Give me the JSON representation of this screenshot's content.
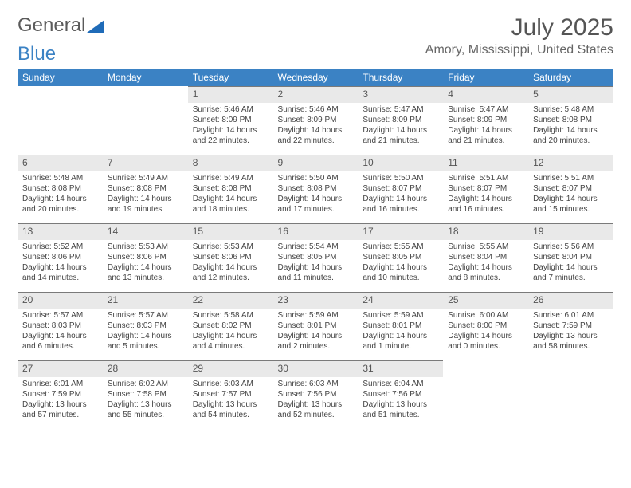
{
  "logo": {
    "general": "General",
    "blue": "Blue"
  },
  "title": "July 2025",
  "location": "Amory, Mississippi, United States",
  "colors": {
    "header_bg": "#3b82c4",
    "header_text": "#ffffff",
    "daynum_bg": "#e9e9e9",
    "daynum_border": "#7a7a7a",
    "text": "#444444"
  },
  "dayNames": [
    "Sunday",
    "Monday",
    "Tuesday",
    "Wednesday",
    "Thursday",
    "Friday",
    "Saturday"
  ],
  "weeks": [
    [
      null,
      null,
      {
        "n": "1",
        "sr": "5:46 AM",
        "ss": "8:09 PM",
        "dl": "14 hours and 22 minutes."
      },
      {
        "n": "2",
        "sr": "5:46 AM",
        "ss": "8:09 PM",
        "dl": "14 hours and 22 minutes."
      },
      {
        "n": "3",
        "sr": "5:47 AM",
        "ss": "8:09 PM",
        "dl": "14 hours and 21 minutes."
      },
      {
        "n": "4",
        "sr": "5:47 AM",
        "ss": "8:09 PM",
        "dl": "14 hours and 21 minutes."
      },
      {
        "n": "5",
        "sr": "5:48 AM",
        "ss": "8:08 PM",
        "dl": "14 hours and 20 minutes."
      }
    ],
    [
      {
        "n": "6",
        "sr": "5:48 AM",
        "ss": "8:08 PM",
        "dl": "14 hours and 20 minutes."
      },
      {
        "n": "7",
        "sr": "5:49 AM",
        "ss": "8:08 PM",
        "dl": "14 hours and 19 minutes."
      },
      {
        "n": "8",
        "sr": "5:49 AM",
        "ss": "8:08 PM",
        "dl": "14 hours and 18 minutes."
      },
      {
        "n": "9",
        "sr": "5:50 AM",
        "ss": "8:08 PM",
        "dl": "14 hours and 17 minutes."
      },
      {
        "n": "10",
        "sr": "5:50 AM",
        "ss": "8:07 PM",
        "dl": "14 hours and 16 minutes."
      },
      {
        "n": "11",
        "sr": "5:51 AM",
        "ss": "8:07 PM",
        "dl": "14 hours and 16 minutes."
      },
      {
        "n": "12",
        "sr": "5:51 AM",
        "ss": "8:07 PM",
        "dl": "14 hours and 15 minutes."
      }
    ],
    [
      {
        "n": "13",
        "sr": "5:52 AM",
        "ss": "8:06 PM",
        "dl": "14 hours and 14 minutes."
      },
      {
        "n": "14",
        "sr": "5:53 AM",
        "ss": "8:06 PM",
        "dl": "14 hours and 13 minutes."
      },
      {
        "n": "15",
        "sr": "5:53 AM",
        "ss": "8:06 PM",
        "dl": "14 hours and 12 minutes."
      },
      {
        "n": "16",
        "sr": "5:54 AM",
        "ss": "8:05 PM",
        "dl": "14 hours and 11 minutes."
      },
      {
        "n": "17",
        "sr": "5:55 AM",
        "ss": "8:05 PM",
        "dl": "14 hours and 10 minutes."
      },
      {
        "n": "18",
        "sr": "5:55 AM",
        "ss": "8:04 PM",
        "dl": "14 hours and 8 minutes."
      },
      {
        "n": "19",
        "sr": "5:56 AM",
        "ss": "8:04 PM",
        "dl": "14 hours and 7 minutes."
      }
    ],
    [
      {
        "n": "20",
        "sr": "5:57 AM",
        "ss": "8:03 PM",
        "dl": "14 hours and 6 minutes."
      },
      {
        "n": "21",
        "sr": "5:57 AM",
        "ss": "8:03 PM",
        "dl": "14 hours and 5 minutes."
      },
      {
        "n": "22",
        "sr": "5:58 AM",
        "ss": "8:02 PM",
        "dl": "14 hours and 4 minutes."
      },
      {
        "n": "23",
        "sr": "5:59 AM",
        "ss": "8:01 PM",
        "dl": "14 hours and 2 minutes."
      },
      {
        "n": "24",
        "sr": "5:59 AM",
        "ss": "8:01 PM",
        "dl": "14 hours and 1 minute."
      },
      {
        "n": "25",
        "sr": "6:00 AM",
        "ss": "8:00 PM",
        "dl": "14 hours and 0 minutes."
      },
      {
        "n": "26",
        "sr": "6:01 AM",
        "ss": "7:59 PM",
        "dl": "13 hours and 58 minutes."
      }
    ],
    [
      {
        "n": "27",
        "sr": "6:01 AM",
        "ss": "7:59 PM",
        "dl": "13 hours and 57 minutes."
      },
      {
        "n": "28",
        "sr": "6:02 AM",
        "ss": "7:58 PM",
        "dl": "13 hours and 55 minutes."
      },
      {
        "n": "29",
        "sr": "6:03 AM",
        "ss": "7:57 PM",
        "dl": "13 hours and 54 minutes."
      },
      {
        "n": "30",
        "sr": "6:03 AM",
        "ss": "7:56 PM",
        "dl": "13 hours and 52 minutes."
      },
      {
        "n": "31",
        "sr": "6:04 AM",
        "ss": "7:56 PM",
        "dl": "13 hours and 51 minutes."
      },
      null,
      null
    ]
  ],
  "labels": {
    "sunrise": "Sunrise: ",
    "sunset": "Sunset: ",
    "daylight": "Daylight: "
  }
}
